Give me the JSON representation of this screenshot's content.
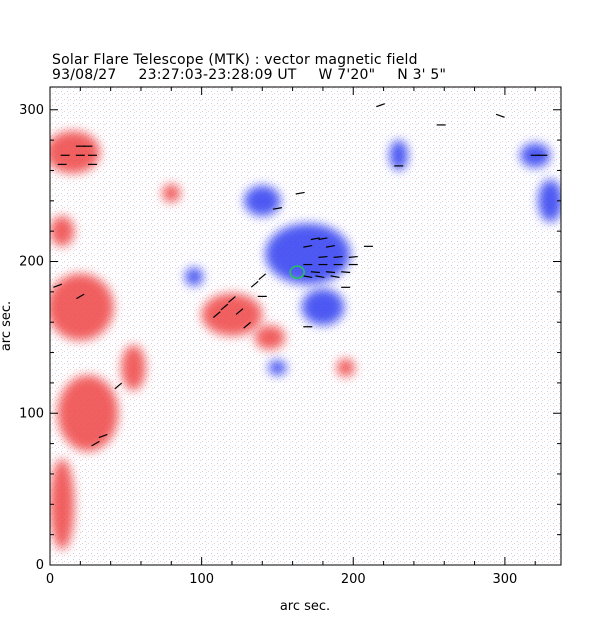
{
  "title": "Solar Flare Telescope (MTK) : vector magnetic field",
  "subtitle": {
    "date": "93/08/27",
    "time_range": "23:27:03-23:28:09 UT",
    "longitude": "W 7'20\"",
    "latitude": "N 3' 5\""
  },
  "colors": {
    "positive": "#ef4444",
    "negative": "#2f3cf0",
    "marker": "#22c55e",
    "vector": "#000000"
  },
  "chart_data": {
    "type": "heatmap",
    "title": "Solar Flare Telescope (MTK) : vector magnetic field",
    "xlabel": "arc sec.",
    "ylabel": "arc sec.",
    "xlim": [
      0,
      337
    ],
    "ylim": [
      0,
      315
    ],
    "x_ticks": [
      "0",
      "100",
      "200",
      "300"
    ],
    "y_ticks": [
      "0",
      "100",
      "200",
      "300"
    ],
    "tick_values": [
      0,
      100,
      200,
      300
    ],
    "positive_regions": [
      {
        "x": 15,
        "y": 272,
        "rx": 18,
        "ry": 14
      },
      {
        "x": 8,
        "y": 220,
        "rx": 8,
        "ry": 10
      },
      {
        "x": 20,
        "y": 170,
        "rx": 22,
        "ry": 22
      },
      {
        "x": 25,
        "y": 100,
        "rx": 20,
        "ry": 25
      },
      {
        "x": 8,
        "y": 40,
        "rx": 8,
        "ry": 30
      },
      {
        "x": 55,
        "y": 130,
        "rx": 8,
        "ry": 15
      },
      {
        "x": 80,
        "y": 245,
        "rx": 6,
        "ry": 6
      },
      {
        "x": 120,
        "y": 165,
        "rx": 20,
        "ry": 14
      },
      {
        "x": 145,
        "y": 150,
        "rx": 10,
        "ry": 8
      },
      {
        "x": 195,
        "y": 130,
        "rx": 6,
        "ry": 6
      }
    ],
    "negative_regions": [
      {
        "x": 170,
        "y": 205,
        "rx": 28,
        "ry": 20
      },
      {
        "x": 140,
        "y": 240,
        "rx": 12,
        "ry": 10
      },
      {
        "x": 180,
        "y": 170,
        "rx": 14,
        "ry": 12
      },
      {
        "x": 230,
        "y": 270,
        "rx": 6,
        "ry": 10
      },
      {
        "x": 330,
        "y": 240,
        "rx": 8,
        "ry": 14
      },
      {
        "x": 320,
        "y": 270,
        "rx": 10,
        "ry": 8
      },
      {
        "x": 150,
        "y": 130,
        "rx": 6,
        "ry": 5
      },
      {
        "x": 95,
        "y": 190,
        "rx": 6,
        "ry": 6
      }
    ],
    "vectors": [
      {
        "x": 20,
        "y": 276,
        "angle": 0
      },
      {
        "x": 25,
        "y": 276,
        "angle": 0
      },
      {
        "x": 10,
        "y": 270,
        "angle": 0
      },
      {
        "x": 20,
        "y": 270,
        "angle": 0
      },
      {
        "x": 28,
        "y": 270,
        "angle": 0
      },
      {
        "x": 8,
        "y": 264,
        "angle": 0
      },
      {
        "x": 28,
        "y": 264,
        "angle": 0
      },
      {
        "x": 5,
        "y": 184,
        "angle": 20
      },
      {
        "x": 20,
        "y": 177,
        "angle": 30
      },
      {
        "x": 45,
        "y": 118,
        "angle": 40
      },
      {
        "x": 30,
        "y": 80,
        "angle": 30
      },
      {
        "x": 35,
        "y": 85,
        "angle": 20
      },
      {
        "x": 175,
        "y": 215,
        "angle": 10
      },
      {
        "x": 180,
        "y": 215,
        "angle": 10
      },
      {
        "x": 170,
        "y": 210,
        "angle": 10
      },
      {
        "x": 185,
        "y": 210,
        "angle": 10
      },
      {
        "x": 180,
        "y": 203,
        "angle": 5
      },
      {
        "x": 190,
        "y": 203,
        "angle": 5
      },
      {
        "x": 200,
        "y": 203,
        "angle": 5
      },
      {
        "x": 170,
        "y": 198,
        "angle": 0
      },
      {
        "x": 180,
        "y": 198,
        "angle": 0
      },
      {
        "x": 190,
        "y": 198,
        "angle": 0
      },
      {
        "x": 200,
        "y": 198,
        "angle": 0
      },
      {
        "x": 175,
        "y": 193,
        "angle": -5
      },
      {
        "x": 185,
        "y": 193,
        "angle": -5
      },
      {
        "x": 195,
        "y": 193,
        "angle": -5
      },
      {
        "x": 170,
        "y": 190,
        "angle": -10
      },
      {
        "x": 178,
        "y": 190,
        "angle": -10
      },
      {
        "x": 188,
        "y": 190,
        "angle": -10
      },
      {
        "x": 195,
        "y": 183,
        "angle": 0
      },
      {
        "x": 210,
        "y": 210,
        "angle": 0
      },
      {
        "x": 170,
        "y": 157,
        "angle": 0
      },
      {
        "x": 150,
        "y": 235,
        "angle": 10
      },
      {
        "x": 165,
        "y": 245,
        "angle": 10
      },
      {
        "x": 140,
        "y": 190,
        "angle": 40
      },
      {
        "x": 135,
        "y": 185,
        "angle": 40
      },
      {
        "x": 120,
        "y": 175,
        "angle": 40
      },
      {
        "x": 115,
        "y": 170,
        "angle": 40
      },
      {
        "x": 125,
        "y": 167,
        "angle": 40
      },
      {
        "x": 110,
        "y": 165,
        "angle": 40
      },
      {
        "x": 130,
        "y": 158,
        "angle": 40
      },
      {
        "x": 140,
        "y": 177,
        "angle": 0
      },
      {
        "x": 218,
        "y": 303,
        "angle": 20
      },
      {
        "x": 230,
        "y": 263,
        "angle": 0
      },
      {
        "x": 258,
        "y": 290,
        "angle": 0
      },
      {
        "x": 297,
        "y": 296,
        "angle": -20
      },
      {
        "x": 320,
        "y": 270,
        "angle": 0
      },
      {
        "x": 325,
        "y": 270,
        "angle": 0
      }
    ],
    "marker": {
      "x": 163,
      "y": 193
    }
  }
}
